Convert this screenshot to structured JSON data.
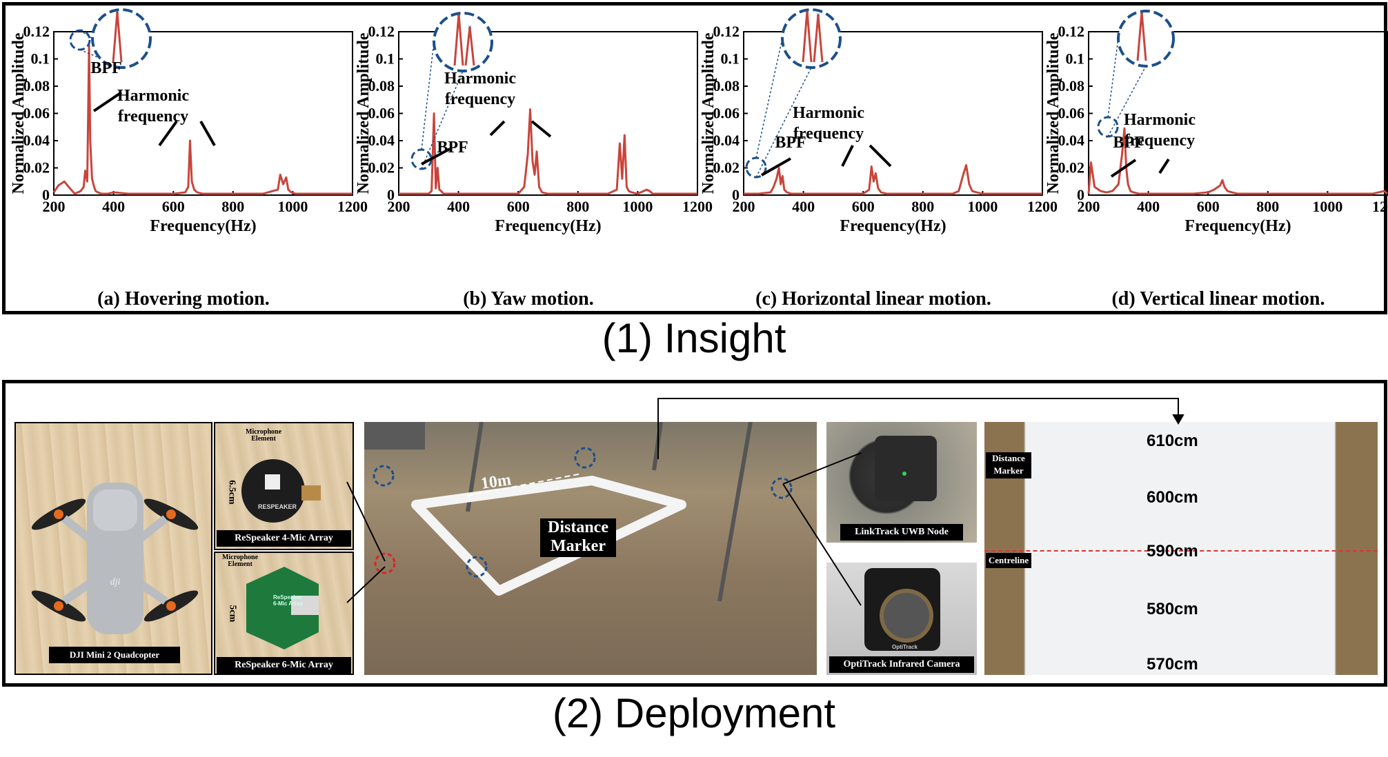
{
  "sections": {
    "insight": "(1) Insight",
    "deployment": "(2) Deployment"
  },
  "chart_data": [
    {
      "type": "line",
      "caption": "(a) Hovering motion.",
      "xlabel": "Frequency(Hz)",
      "ylabel": "Normalized Amplitude",
      "xlim": [
        200,
        1200
      ],
      "ylim": [
        0,
        0.12
      ],
      "xticks": [
        "200",
        "400",
        "600",
        "800",
        "1000",
        "1200"
      ],
      "yticks": [
        "0",
        "0.02",
        "0.04",
        "0.06",
        "0.08",
        "0.1",
        "0.12"
      ],
      "color": "#c8453c",
      "series": [
        {
          "x": [
            200,
            215,
            235,
            250,
            270,
            290,
            300,
            305,
            312,
            318,
            322,
            328,
            335,
            340,
            348,
            360,
            380,
            400,
            450,
            500,
            550,
            600,
            640,
            650,
            656,
            662,
            670,
            680,
            700,
            750,
            800,
            850,
            900,
            950,
            958,
            968,
            978,
            985,
            995,
            1010,
            1050,
            1100,
            1150,
            1200
          ],
          "y": [
            0.002,
            0.007,
            0.01,
            0.006,
            0.001,
            0.003,
            0.006,
            0.018,
            0.01,
            0.11,
            0.04,
            0.012,
            0.006,
            0.003,
            0.002,
            0.001,
            0.001,
            0.002,
            0.001,
            0.001,
            0.001,
            0.001,
            0.002,
            0.006,
            0.04,
            0.01,
            0.004,
            0.002,
            0.001,
            0.001,
            0.001,
            0.001,
            0.001,
            0.004,
            0.015,
            0.008,
            0.013,
            0.004,
            0.002,
            0.001,
            0.001,
            0.001,
            0.001,
            0.001
          ]
        }
      ],
      "zoom_peaks": [
        0.125
      ],
      "annotations": [
        {
          "text": "BPF"
        },
        {
          "text": "Harmonic\nfrequency"
        }
      ]
    },
    {
      "type": "line",
      "caption": "(b) Yaw motion.",
      "xlabel": "Frequency(Hz)",
      "ylabel": "Normalized Amplitude",
      "xlim": [
        200,
        1200
      ],
      "ylim": [
        0,
        0.12
      ],
      "xticks": [
        "200",
        "400",
        "600",
        "800",
        "1000",
        "1200"
      ],
      "yticks": [
        "0",
        "0.02",
        "0.04",
        "0.06",
        "0.08",
        "0.1",
        "0.12"
      ],
      "color": "#c8453c",
      "series": [
        {
          "x": [
            200,
            250,
            300,
            310,
            318,
            324,
            330,
            336,
            342,
            350,
            400,
            500,
            600,
            620,
            632,
            640,
            648,
            655,
            662,
            670,
            680,
            700,
            800,
            900,
            930,
            940,
            948,
            956,
            963,
            970,
            980,
            1000,
            1030,
            1040,
            1050,
            1100,
            1200
          ],
          "y": [
            0.001,
            0.001,
            0.001,
            0.003,
            0.06,
            0.005,
            0.02,
            0.004,
            0.003,
            0.001,
            0.001,
            0.001,
            0.001,
            0.006,
            0.03,
            0.063,
            0.025,
            0.015,
            0.032,
            0.006,
            0.002,
            0.001,
            0.001,
            0.001,
            0.004,
            0.038,
            0.012,
            0.044,
            0.006,
            0.003,
            0.002,
            0.001,
            0.004,
            0.003,
            0.001,
            0.001,
            0.001
          ]
        }
      ],
      "zoom_peaks": [
        0.128,
        0.096
      ],
      "annotations": [
        {
          "text": "BPF"
        },
        {
          "text": "Harmonic\nfrequency"
        }
      ]
    },
    {
      "type": "line",
      "caption": "(c) Horizontal linear motion.",
      "xlabel": "Frequency(Hz)",
      "ylabel": "Normalized Amplitude",
      "xlim": [
        200,
        1200
      ],
      "ylim": [
        0,
        0.12
      ],
      "xticks": [
        "200",
        "400",
        "600",
        "800",
        "1000",
        "1200"
      ],
      "yticks": [
        "0",
        "0.02",
        "0.04",
        "0.06",
        "0.08",
        "0.1",
        "0.12"
      ],
      "color": "#c8453c",
      "series": [
        {
          "x": [
            200,
            250,
            290,
            300,
            310,
            318,
            324,
            330,
            336,
            345,
            360,
            400,
            500,
            600,
            620,
            628,
            635,
            642,
            650,
            660,
            680,
            700,
            800,
            900,
            920,
            935,
            945,
            955,
            965,
            980,
            1000,
            1100,
            1200
          ],
          "y": [
            0.001,
            0.001,
            0.002,
            0.006,
            0.012,
            0.02,
            0.008,
            0.014,
            0.004,
            0.002,
            0.001,
            0.001,
            0.001,
            0.001,
            0.004,
            0.021,
            0.01,
            0.016,
            0.005,
            0.002,
            0.001,
            0.001,
            0.001,
            0.001,
            0.003,
            0.015,
            0.022,
            0.008,
            0.003,
            0.002,
            0.001,
            0.001,
            0.001
          ]
        }
      ],
      "zoom_peaks": [
        0.128,
        0.118
      ],
      "annotations": [
        {
          "text": "BPF"
        },
        {
          "text": "Harmonic\nfrequency"
        }
      ]
    },
    {
      "type": "line",
      "caption": "(d) Vertical linear motion.",
      "xlabel": "Frequency(Hz)",
      "ylabel": "Normalized Amplitude",
      "xlim": [
        200,
        1200
      ],
      "ylim": [
        0,
        0.12
      ],
      "xticks": [
        "200",
        "400",
        "600",
        "800",
        "1000",
        "1200"
      ],
      "yticks": [
        "0",
        "0.02",
        "0.04",
        "0.06",
        "0.08",
        "0.1",
        "0.12"
      ],
      "color": "#c8453c",
      "series": [
        {
          "x": [
            200,
            208,
            220,
            240,
            260,
            280,
            300,
            312,
            320,
            326,
            332,
            340,
            350,
            370,
            400,
            450,
            500,
            550,
            600,
            620,
            640,
            648,
            655,
            665,
            680,
            700,
            750,
            800,
            850,
            900,
            950,
            1000,
            1050,
            1100,
            1150,
            1190,
            1200
          ],
          "y": [
            0.001,
            0.024,
            0.006,
            0.003,
            0.002,
            0.003,
            0.008,
            0.03,
            0.049,
            0.02,
            0.008,
            0.003,
            0.002,
            0.001,
            0.001,
            0.001,
            0.001,
            0.001,
            0.002,
            0.004,
            0.007,
            0.011,
            0.006,
            0.003,
            0.002,
            0.001,
            0.001,
            0.001,
            0.001,
            0.001,
            0.001,
            0.001,
            0.001,
            0.001,
            0.001,
            0.003,
            0.001
          ]
        }
      ],
      "zoom_peaks": [
        0.128
      ],
      "annotations": [
        {
          "text": "BPF"
        },
        {
          "text": "Harmonic\nfrequency"
        }
      ]
    }
  ],
  "deployment": {
    "drone": {
      "caption": "DJI Mini 2 Quadcopter",
      "logo": "dji"
    },
    "respeaker4": {
      "caption": "ReSpeaker 4-Mic Array",
      "mic_label": "Microphone\nElement",
      "dim": "6.5cm",
      "board_text": "RESPEAKER"
    },
    "respeaker6": {
      "caption": "ReSpeaker 6-Mic Array",
      "mic_label": "Microphone\nElement",
      "dim": "5cm",
      "board_text": "ReSpeaker\n6-Mic Array"
    },
    "field": {
      "distance": "10m",
      "marker_label": "Distance\nMarker"
    },
    "uwb": {
      "caption": "LinkTrack UWB Node"
    },
    "camera": {
      "caption": "OptiTrack Infrared Camera",
      "brand": "OptiTrack"
    },
    "marker_strip": {
      "side_label": "Distance\nMarker",
      "centre_label": "Centreline",
      "marks": [
        "610cm",
        "600cm",
        "590cm",
        "580cm",
        "570cm"
      ]
    }
  }
}
